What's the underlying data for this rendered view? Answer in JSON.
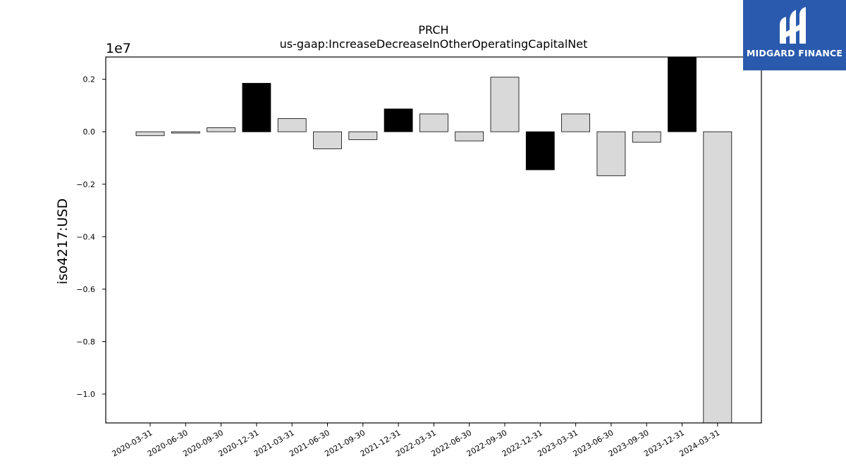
{
  "chart_data": {
    "type": "bar",
    "title": "PRCH",
    "subtitle": "us-gaap:IncreaseDecreaseInOtherOperatingCapitalNet",
    "xlabel": "",
    "ylabel": "iso4217:USD",
    "y_scale_label": "1e7",
    "ylim": [
      -11.1,
      2.85
    ],
    "yticks": [
      2,
      0,
      -2,
      -4,
      -6,
      -8,
      -10
    ],
    "ytick_labels": [
      "0.2",
      "0.0",
      "−0.2",
      "−0.4",
      "−0.6",
      "−0.8",
      "−1.0"
    ],
    "grid": false,
    "legend": "none",
    "categories": [
      "2020-03-31",
      "2020-06-30",
      "2020-09-30",
      "2020-12-31",
      "2021-03-31",
      "2021-06-30",
      "2021-09-30",
      "2021-12-31",
      "2022-03-31",
      "2022-06-30",
      "2022-09-30",
      "2022-12-31",
      "2023-03-31",
      "2023-06-30",
      "2023-09-30",
      "2023-12-31",
      "2024-03-31"
    ],
    "values": [
      -0.15,
      -0.05,
      0.15,
      1.85,
      0.5,
      -0.65,
      -0.3,
      0.87,
      0.68,
      -0.35,
      2.08,
      -1.45,
      0.68,
      -1.68,
      -0.4,
      2.85,
      -11.1
    ],
    "value_units": "1e6 USD",
    "highlight": [
      false,
      false,
      false,
      true,
      false,
      false,
      false,
      true,
      false,
      false,
      false,
      true,
      false,
      false,
      false,
      true,
      false
    ],
    "colors": {
      "normal": "#d9d9d9",
      "highlight": "#000000",
      "edge": "#000000"
    }
  },
  "logo": {
    "text": "MIDGARD FINANCE",
    "bg_color": "#2a5aad"
  }
}
